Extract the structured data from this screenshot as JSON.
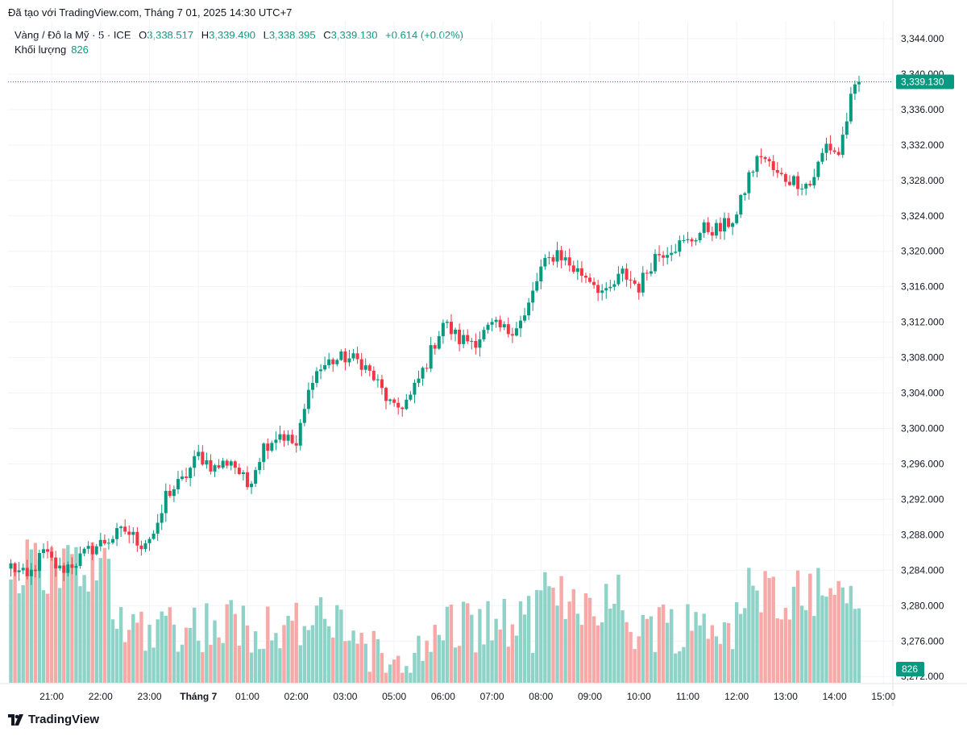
{
  "header": {
    "source_text": "Đã tạo với TradingView.com, Tháng 7 01, 2025 14:30 UTC+7"
  },
  "legend": {
    "symbol": "Vàng / Đô la Mỹ · 5 · ICE",
    "open_label": "O",
    "open": "3,338.517",
    "high_label": "H",
    "high": "3,339.490",
    "low_label": "L",
    "low": "3,338.395",
    "close_label": "C",
    "close": "3,339.130",
    "change": "+0.614 (+0.02%)",
    "volume_label": "Khối lượng",
    "volume": "826"
  },
  "footer": {
    "brand": "TradingView"
  },
  "colors": {
    "up": "#089981",
    "down": "#f23645",
    "up_volume": "#8fd3c8",
    "down_volume": "#f7a9a7",
    "grid": "#f0f3fa"
  },
  "chart_data": {
    "type": "candlestick",
    "title": "Vàng / Đô la Mỹ · 5 · ICE",
    "ylim": [
      3271.2,
      3346.0
    ],
    "y_ticks": [
      3344,
      3340,
      3336,
      3332,
      3328,
      3324,
      3320,
      3316,
      3312,
      3308,
      3304,
      3300,
      3296,
      3292,
      3288,
      3284,
      3280,
      3276,
      3272
    ],
    "y_tick_labels": [
      "3,344.000",
      "3,340.000",
      "3,336.000",
      "3,332.000",
      "3,328.000",
      "3,324.000",
      "3,320.000",
      "3,316.000",
      "3,312.000",
      "3,308.000",
      "3,304.000",
      "3,300.000",
      "3,296.000",
      "3,292.000",
      "3,288.000",
      "3,284.000",
      "3,280.000",
      "3,276.000",
      "3,272.000"
    ],
    "x_ticks": [
      {
        "label": "21:00",
        "bar": 10
      },
      {
        "label": "22:00",
        "bar": 22
      },
      {
        "label": "23:00",
        "bar": 34
      },
      {
        "label": "Tháng 7",
        "bar": 46,
        "bold": true
      },
      {
        "label": "01:00",
        "bar": 58
      },
      {
        "label": "02:00",
        "bar": 70
      },
      {
        "label": "03:00",
        "bar": 82
      },
      {
        "label": "05:00",
        "bar": 94
      },
      {
        "label": "06:00",
        "bar": 106
      },
      {
        "label": "07:00",
        "bar": 118
      },
      {
        "label": "08:00",
        "bar": 130
      },
      {
        "label": "09:00",
        "bar": 142
      },
      {
        "label": "10:00",
        "bar": 154
      },
      {
        "label": "11:00",
        "bar": 166
      },
      {
        "label": "12:00",
        "bar": 178
      },
      {
        "label": "13:00",
        "bar": 190
      },
      {
        "label": "14:00",
        "bar": 202
      },
      {
        "label": "15:00",
        "bar": 214
      }
    ],
    "last_price_label": "3,339.130",
    "last_price": 3339.13,
    "last_volume_label": "826",
    "anchors": [
      {
        "bar": 0,
        "price": 3284.5
      },
      {
        "bar": 4,
        "price": 3283.0
      },
      {
        "bar": 8,
        "price": 3286.0
      },
      {
        "bar": 12,
        "price": 3284.0
      },
      {
        "bar": 16,
        "price": 3285.0
      },
      {
        "bar": 20,
        "price": 3286.5
      },
      {
        "bar": 24,
        "price": 3287.5
      },
      {
        "bar": 28,
        "price": 3288.5
      },
      {
        "bar": 32,
        "price": 3287.0
      },
      {
        "bar": 36,
        "price": 3288.5
      },
      {
        "bar": 38,
        "price": 3292.5
      },
      {
        "bar": 42,
        "price": 3294.0
      },
      {
        "bar": 46,
        "price": 3297.0
      },
      {
        "bar": 50,
        "price": 3295.5
      },
      {
        "bar": 54,
        "price": 3296.5
      },
      {
        "bar": 58,
        "price": 3293.5
      },
      {
        "bar": 62,
        "price": 3298.0
      },
      {
        "bar": 66,
        "price": 3299.5
      },
      {
        "bar": 70,
        "price": 3298.0
      },
      {
        "bar": 74,
        "price": 3306.0
      },
      {
        "bar": 78,
        "price": 3307.5
      },
      {
        "bar": 82,
        "price": 3308.0
      },
      {
        "bar": 86,
        "price": 3307.5
      },
      {
        "bar": 90,
        "price": 3305.0
      },
      {
        "bar": 94,
        "price": 3302.0
      },
      {
        "bar": 98,
        "price": 3303.5
      },
      {
        "bar": 102,
        "price": 3307.5
      },
      {
        "bar": 106,
        "price": 3312.0
      },
      {
        "bar": 110,
        "price": 3310.0
      },
      {
        "bar": 114,
        "price": 3310.0
      },
      {
        "bar": 118,
        "price": 3311.5
      },
      {
        "bar": 122,
        "price": 3311.0
      },
      {
        "bar": 126,
        "price": 3312.5
      },
      {
        "bar": 130,
        "price": 3318.0
      },
      {
        "bar": 134,
        "price": 3320.0
      },
      {
        "bar": 138,
        "price": 3318.0
      },
      {
        "bar": 142,
        "price": 3317.0
      },
      {
        "bar": 146,
        "price": 3315.0
      },
      {
        "bar": 150,
        "price": 3317.5
      },
      {
        "bar": 154,
        "price": 3316.0
      },
      {
        "bar": 158,
        "price": 3319.5
      },
      {
        "bar": 162,
        "price": 3320.5
      },
      {
        "bar": 166,
        "price": 3321.0
      },
      {
        "bar": 170,
        "price": 3322.5
      },
      {
        "bar": 174,
        "price": 3322.5
      },
      {
        "bar": 178,
        "price": 3324.0
      },
      {
        "bar": 181,
        "price": 3328.5
      },
      {
        "bar": 184,
        "price": 3331.0
      },
      {
        "bar": 188,
        "price": 3328.5
      },
      {
        "bar": 192,
        "price": 3328.0
      },
      {
        "bar": 196,
        "price": 3327.5
      },
      {
        "bar": 200,
        "price": 3332.0
      },
      {
        "bar": 203,
        "price": 3331.0
      },
      {
        "bar": 206,
        "price": 3337.0
      },
      {
        "bar": 208,
        "price": 3339.13
      }
    ],
    "n_bars": 209,
    "volume_max": 1700
  }
}
